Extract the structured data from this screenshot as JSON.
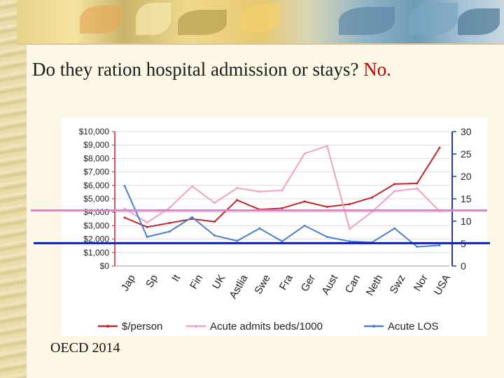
{
  "title": {
    "main": "Do they ration hospital admission or stays?",
    "answer": "No."
  },
  "source": "OECD 2014",
  "colors": {
    "cost": "#c0262d",
    "admits": "#f0a0c8",
    "los": "#4a7fd0",
    "admits_ref": "#e87bd8",
    "los_ref": "#1020b0",
    "left_axis": "#c0262d",
    "right_axis": "#1f3f9f"
  },
  "chart_data": {
    "type": "line",
    "categories": [
      "Jap",
      "Sp",
      "It",
      "Fin",
      "UK",
      "Astlia",
      "Swe",
      "Fra",
      "Ger",
      "Aust",
      "Can",
      "Neth",
      "Swz",
      "Nor",
      "USA"
    ],
    "series": [
      {
        "name": "$/person",
        "axis": "left",
        "values": [
          3600,
          2900,
          3200,
          3500,
          3300,
          4900,
          4200,
          4300,
          4800,
          4400,
          4600,
          5100,
          6100,
          6150,
          8800
        ]
      },
      {
        "name": "Acute admits beds/1000",
        "axis": "right",
        "values": [
          12.8,
          9.7,
          13,
          17.8,
          14.1,
          17.4,
          16.6,
          16.9,
          25.1,
          26.8,
          8.3,
          12.1,
          16.7,
          17.3,
          12.2
        ]
      },
      {
        "name": "Acute LOS",
        "axis": "right",
        "values": [
          17.9,
          6.5,
          7.7,
          10.9,
          6.8,
          5.6,
          8.4,
          5.5,
          9,
          6.5,
          5.5,
          5.3,
          8.4,
          4.3,
          4.6
        ]
      }
    ],
    "reference_lines": [
      {
        "series": "Acute admits beds/1000",
        "value": 12.4
      },
      {
        "series": "Acute LOS",
        "value": 5.1
      }
    ],
    "left_axis": {
      "min": 0,
      "max": 10000,
      "ticks": [
        "$0",
        "$1,000",
        "$2,000",
        "$3,000",
        "$4,000",
        "$5,000",
        "$6,000",
        "$7,000",
        "$8,000",
        "$9,000",
        "$10,000"
      ]
    },
    "right_axis": {
      "min": 0,
      "max": 30,
      "ticks": [
        "0",
        "5",
        "10",
        "15",
        "20",
        "25",
        "30"
      ]
    },
    "legend": [
      "$/person",
      "Acute admits beds/1000",
      "Acute LOS"
    ],
    "legend_position": "bottom",
    "grid": true
  }
}
